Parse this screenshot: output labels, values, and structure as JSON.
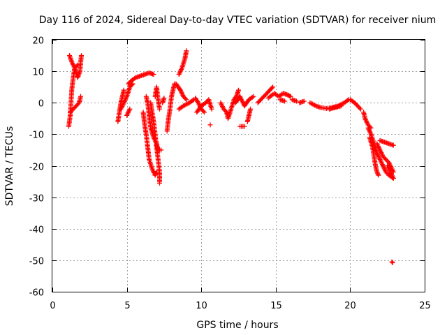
{
  "chart_data": {
    "type": "scatter",
    "title": "Day 116 of 2024, Sidereal Day-to-day VTEC variation (SDTVAR) for receiver nium",
    "xlabel": "GPS time / hours",
    "ylabel": "SDTVAR / TECUs",
    "xlim": [
      0,
      25
    ],
    "ylim": [
      -60,
      20
    ],
    "xticks": [
      0,
      5,
      10,
      15,
      20,
      25
    ],
    "yticks": [
      20,
      10,
      0,
      -10,
      -20,
      -30,
      -40,
      -50,
      -60
    ],
    "grid": true,
    "marker": "+",
    "color": "#ff0000",
    "segments": [
      [
        [
          1.1,
          -7.5
        ],
        [
          1.2,
          -4
        ],
        [
          1.25,
          0
        ],
        [
          1.3,
          4
        ],
        [
          1.4,
          8
        ],
        [
          1.5,
          11
        ],
        [
          1.7,
          12
        ]
      ],
      [
        [
          1.15,
          15
        ],
        [
          1.3,
          13
        ],
        [
          1.5,
          11
        ],
        [
          1.7,
          8
        ],
        [
          1.85,
          10
        ],
        [
          1.9,
          13
        ],
        [
          1.95,
          15
        ]
      ],
      [
        [
          1.2,
          -3
        ],
        [
          1.4,
          -2
        ],
        [
          1.6,
          -1
        ],
        [
          1.8,
          0
        ],
        [
          1.9,
          2
        ]
      ],
      [
        [
          4.4,
          -6
        ],
        [
          4.5,
          -3
        ],
        [
          4.6,
          0
        ],
        [
          4.7,
          2
        ],
        [
          4.8,
          4
        ]
      ],
      [
        [
          4.6,
          -2
        ],
        [
          4.8,
          0
        ],
        [
          5.0,
          2
        ],
        [
          5.2,
          5
        ],
        [
          5.4,
          6
        ]
      ],
      [
        [
          5.0,
          -4
        ],
        [
          5.2,
          -2
        ]
      ],
      [
        [
          5.1,
          6
        ],
        [
          5.3,
          7
        ],
        [
          5.6,
          8
        ],
        [
          5.9,
          8.5
        ],
        [
          6.2,
          9
        ],
        [
          6.5,
          9.5
        ],
        [
          6.8,
          9
        ]
      ],
      [
        [
          6.1,
          -3
        ],
        [
          6.2,
          -7
        ],
        [
          6.3,
          -10
        ],
        [
          6.4,
          -14
        ],
        [
          6.5,
          -18
        ],
        [
          6.7,
          -21
        ],
        [
          6.9,
          -23
        ],
        [
          7.0,
          -22
        ]
      ],
      [
        [
          6.3,
          2
        ],
        [
          6.4,
          0
        ],
        [
          6.5,
          -4
        ],
        [
          6.6,
          -8
        ],
        [
          6.8,
          -11
        ],
        [
          7.0,
          -13
        ],
        [
          7.1,
          -15
        ],
        [
          7.3,
          -15
        ]
      ],
      [
        [
          6.6,
          0
        ],
        [
          6.7,
          -3
        ],
        [
          6.8,
          -6
        ],
        [
          6.9,
          -10
        ],
        [
          7.0,
          -14
        ],
        [
          7.1,
          -18
        ],
        [
          7.2,
          -22
        ],
        [
          7.2,
          -25.5
        ]
      ],
      [
        [
          6.9,
          2
        ],
        [
          7.0,
          5
        ],
        [
          7.1,
          1
        ],
        [
          7.2,
          -2
        ]
      ],
      [
        [
          7.4,
          0
        ],
        [
          7.5,
          1.5
        ]
      ],
      [
        [
          7.7,
          -9
        ],
        [
          7.8,
          -5
        ],
        [
          7.9,
          -2
        ],
        [
          8.0,
          2
        ],
        [
          8.1,
          4
        ],
        [
          8.2,
          6
        ]
      ],
      [
        [
          8.3,
          6
        ],
        [
          8.6,
          4
        ],
        [
          8.8,
          2
        ],
        [
          9.0,
          1
        ]
      ],
      [
        [
          8.5,
          9
        ],
        [
          8.7,
          11
        ],
        [
          8.9,
          14
        ],
        [
          9.0,
          16.5
        ]
      ],
      [
        [
          8.5,
          -2
        ],
        [
          8.8,
          -1
        ],
        [
          9.2,
          0
        ],
        [
          9.5,
          1
        ]
      ],
      [
        [
          9.6,
          1.5
        ],
        [
          9.8,
          0
        ],
        [
          10.0,
          -2
        ],
        [
          10.2,
          -3
        ]
      ],
      [
        [
          9.7,
          -3
        ],
        [
          10.0,
          -1
        ],
        [
          10.3,
          0
        ],
        [
          10.5,
          1
        ],
        [
          10.7,
          -2
        ]
      ],
      [
        [
          10.6,
          -7
        ]
      ],
      [
        [
          11.3,
          0
        ],
        [
          11.5,
          -2
        ],
        [
          11.7,
          -3
        ],
        [
          11.8,
          -5
        ],
        [
          12.0,
          -2
        ],
        [
          12.2,
          1
        ],
        [
          12.4,
          2.5
        ],
        [
          12.5,
          4
        ]
      ],
      [
        [
          12.3,
          0
        ],
        [
          12.6,
          2
        ],
        [
          12.9,
          -1
        ],
        [
          13.2,
          1
        ],
        [
          13.5,
          2
        ]
      ],
      [
        [
          12.6,
          -7.5
        ],
        [
          12.9,
          -7.5
        ]
      ],
      [
        [
          13.1,
          -6
        ],
        [
          13.2,
          -4
        ],
        [
          13.3,
          -2
        ]
      ],
      [
        [
          13.8,
          0
        ],
        [
          14.0,
          1
        ],
        [
          14.2,
          2
        ],
        [
          14.4,
          3
        ],
        [
          14.6,
          4
        ],
        [
          14.8,
          5
        ]
      ],
      [
        [
          14.5,
          1.5
        ],
        [
          14.9,
          3
        ],
        [
          15.2,
          2
        ],
        [
          15.5,
          3
        ],
        [
          15.8,
          2.5
        ],
        [
          16.0,
          2
        ]
      ],
      [
        [
          15.3,
          1
        ],
        [
          15.6,
          0.5
        ]
      ],
      [
        [
          16.1,
          1
        ],
        [
          16.4,
          0.5
        ]
      ],
      [
        [
          16.6,
          0
        ],
        [
          16.9,
          0.5
        ]
      ],
      [
        [
          17.3,
          0
        ],
        [
          17.7,
          -1
        ],
        [
          18.0,
          -1.5
        ],
        [
          18.4,
          -1.8
        ],
        [
          18.8,
          -1.5
        ],
        [
          19.2,
          -1
        ],
        [
          19.6,
          0
        ],
        [
          19.9,
          1
        ]
      ],
      [
        [
          18.6,
          -2
        ],
        [
          19.0,
          -1.5
        ],
        [
          19.4,
          -1
        ]
      ],
      [
        [
          20.0,
          1
        ],
        [
          20.3,
          0
        ],
        [
          20.5,
          -1
        ],
        [
          20.7,
          -2
        ]
      ],
      [
        [
          20.9,
          -3
        ],
        [
          21.0,
          -5
        ],
        [
          21.2,
          -7
        ],
        [
          21.4,
          -8
        ]
      ],
      [
        [
          21.2,
          -8
        ],
        [
          21.4,
          -10
        ],
        [
          21.6,
          -13
        ],
        [
          21.8,
          -16
        ],
        [
          22.0,
          -18
        ],
        [
          22.2,
          -20
        ],
        [
          22.4,
          -22
        ],
        [
          22.6,
          -23
        ],
        [
          22.9,
          -24
        ]
      ],
      [
        [
          21.3,
          -11
        ],
        [
          21.5,
          -14
        ],
        [
          21.6,
          -17
        ],
        [
          21.7,
          -20
        ],
        [
          21.8,
          -22
        ],
        [
          21.9,
          -23
        ]
      ],
      [
        [
          21.8,
          -13
        ],
        [
          22.0,
          -15
        ],
        [
          22.2,
          -17
        ],
        [
          22.4,
          -18
        ],
        [
          22.6,
          -19
        ],
        [
          22.8,
          -21
        ],
        [
          22.9,
          -22
        ]
      ],
      [
        [
          22.0,
          -12
        ],
        [
          22.3,
          -12.5
        ],
        [
          22.6,
          -13
        ],
        [
          22.9,
          -13.5
        ]
      ],
      [
        [
          22.5,
          -20
        ],
        [
          22.7,
          -22
        ],
        [
          22.9,
          -24
        ]
      ],
      [
        [
          22.8,
          -50.5
        ],
        [
          22.85,
          -50.8
        ]
      ]
    ]
  }
}
